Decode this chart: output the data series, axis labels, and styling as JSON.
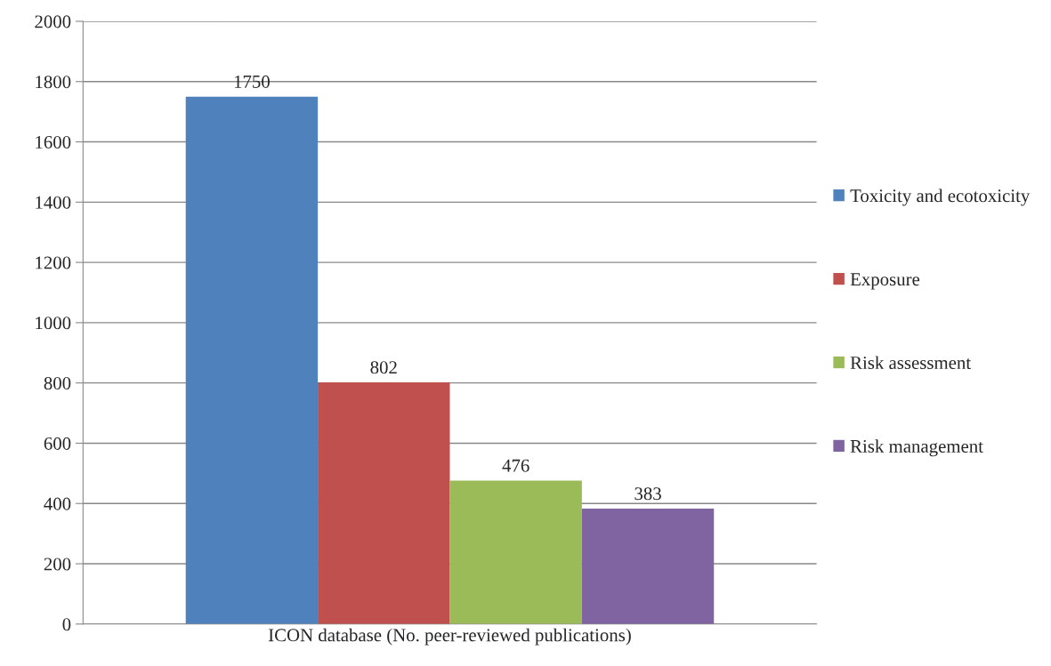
{
  "chart_data": {
    "type": "bar",
    "categories": [
      "ICON database (No. peer-reviewed publications)"
    ],
    "series": [
      {
        "name": "Toxicity and ecotoxicity",
        "color": "#4f81bd",
        "values": [
          1750
        ]
      },
      {
        "name": "Exposure",
        "color": "#c0504d",
        "values": [
          802
        ]
      },
      {
        "name": "Risk assessment",
        "color": "#9bbb59",
        "values": [
          476
        ]
      },
      {
        "name": "Risk management",
        "color": "#8064a2",
        "values": [
          383
        ]
      }
    ],
    "ylim": [
      0,
      2000
    ],
    "yticks": [
      0,
      200,
      400,
      600,
      800,
      1000,
      1200,
      1400,
      1600,
      1800,
      2000
    ],
    "grid": "y",
    "legend": "right",
    "data_labels": true
  }
}
